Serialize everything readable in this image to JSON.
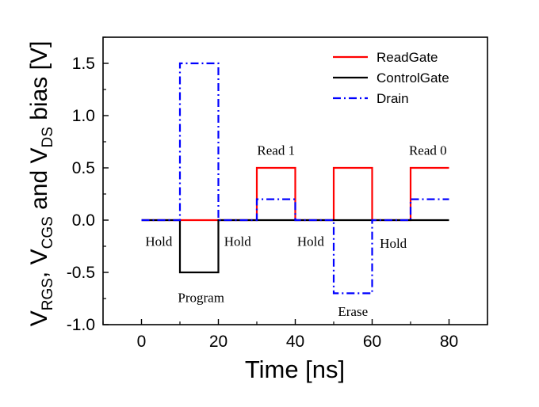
{
  "chart_data": {
    "type": "line",
    "xlabel": "Time [ns]",
    "ylabel": {
      "parts": [
        "V",
        "RGS",
        ", V",
        "CGS",
        " and V",
        "DS",
        " bias [V]"
      ]
    },
    "xlim": [
      -10,
      90
    ],
    "ylim": [
      -1.0,
      1.75
    ],
    "xticks": [
      0,
      20,
      40,
      60,
      80
    ],
    "xtick_labels": [
      "0",
      "20",
      "40",
      "60",
      "80"
    ],
    "yticks": [
      -1.0,
      -0.5,
      0.0,
      0.5,
      1.0,
      1.5
    ],
    "ytick_labels": [
      "-1.0",
      "-0.5",
      "0.0",
      "0.5",
      "1.0",
      "1.5"
    ],
    "grid": false,
    "legend_position": "top-right",
    "series": [
      {
        "name": "ReadGate",
        "color": "#ff0000",
        "style": "solid",
        "x": [
          0,
          30,
          30,
          40,
          40,
          50,
          50,
          60,
          60,
          70,
          70,
          80
        ],
        "y": [
          0,
          0,
          0.5,
          0.5,
          0,
          0,
          0.5,
          0.5,
          0,
          0,
          0.5,
          0.5
        ]
      },
      {
        "name": "ControlGate",
        "color": "#000000",
        "style": "solid",
        "x": [
          0,
          10,
          10,
          20,
          20,
          80
        ],
        "y": [
          0,
          0,
          -0.5,
          -0.5,
          0,
          0
        ]
      },
      {
        "name": "Drain",
        "color": "#0000ff",
        "style": "dashdot",
        "x": [
          0,
          10,
          10,
          20,
          20,
          30,
          30,
          40,
          40,
          50,
          50,
          60,
          60,
          70,
          70,
          80
        ],
        "y": [
          0,
          0,
          1.5,
          1.5,
          0,
          0,
          0.2,
          0.2,
          0,
          0,
          -0.7,
          -0.7,
          0,
          0,
          0.2,
          0.2
        ]
      }
    ],
    "annotations": [
      {
        "text": "Hold",
        "x": 4.5,
        "y": -0.2
      },
      {
        "text": "Program",
        "x": 15.5,
        "y": -0.74
      },
      {
        "text": "Hold",
        "x": 25,
        "y": -0.2
      },
      {
        "text": "Read 1",
        "x": 35,
        "y": 0.67
      },
      {
        "text": "Hold",
        "x": 44,
        "y": -0.2
      },
      {
        "text": "Erase",
        "x": 55,
        "y": -0.87
      },
      {
        "text": "Hold",
        "x": 65.5,
        "y": -0.22
      },
      {
        "text": "Read 0",
        "x": 74.5,
        "y": 0.67
      }
    ]
  }
}
